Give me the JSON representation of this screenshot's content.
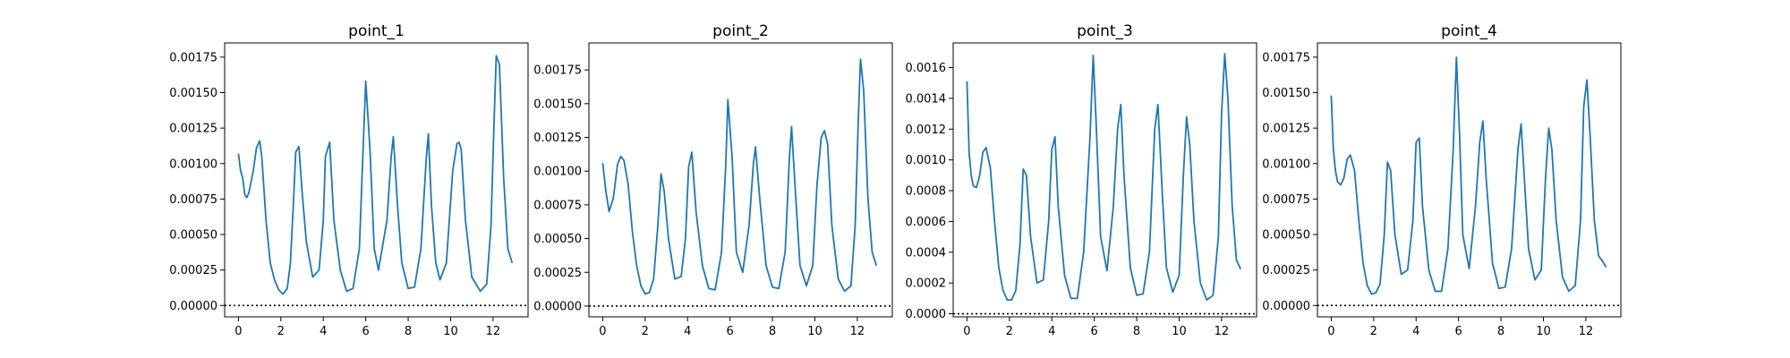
{
  "chart_data": [
    {
      "type": "line",
      "title": "point_1",
      "xlim": [
        -0.65,
        13.65
      ],
      "ylim": [
        -8e-05,
        0.00185
      ],
      "xticks": [
        0,
        2,
        4,
        6,
        8,
        10,
        12
      ],
      "xtick_labels": [
        "0",
        "2",
        "4",
        "6",
        "8",
        "10",
        "12"
      ],
      "yticks": [
        0,
        0.00025,
        0.0005,
        0.00075,
        0.001,
        0.00125,
        0.0015,
        0.00175
      ],
      "ytick_labels": [
        "0.00000",
        "0.00025",
        "0.00050",
        "0.00075",
        "0.00100",
        "0.00125",
        "0.00150",
        "0.00175"
      ],
      "reference_line_y": 0,
      "series": [
        {
          "x": [
            0,
            0.1,
            0.2,
            0.3,
            0.4,
            0.5,
            0.7,
            0.85,
            1.0,
            1.1,
            1.3,
            1.5,
            1.7,
            1.9,
            2.1,
            2.3,
            2.45,
            2.6,
            2.7,
            2.85,
            3.0,
            3.2,
            3.5,
            3.8,
            4.0,
            4.1,
            4.3,
            4.5,
            4.8,
            5.1,
            5.4,
            5.7,
            5.85,
            6.0,
            6.2,
            6.4,
            6.6,
            7.0,
            7.2,
            7.3,
            7.5,
            7.7,
            8.0,
            8.3,
            8.6,
            8.85,
            8.95,
            9.1,
            9.3,
            9.5,
            9.8,
            10.1,
            10.3,
            10.4,
            10.5,
            10.7,
            11.0,
            11.4,
            11.7,
            11.9,
            12.05,
            12.15,
            12.3,
            12.5,
            12.7,
            12.9
          ],
          "y": [
            0.00107,
            0.00095,
            0.0009,
            0.00078,
            0.00076,
            0.0008,
            0.00095,
            0.00111,
            0.00116,
            0.00105,
            0.0006,
            0.0003,
            0.00018,
            0.00011,
            8e-05,
            0.00012,
            0.0003,
            0.00075,
            0.00108,
            0.00112,
            0.0008,
            0.00045,
            0.0002,
            0.00025,
            0.0006,
            0.00105,
            0.00115,
            0.0006,
            0.00025,
            0.0001,
            0.00012,
            0.0004,
            0.001,
            0.00158,
            0.0011,
            0.0004,
            0.00025,
            0.0006,
            0.00105,
            0.00119,
            0.0007,
            0.0003,
            0.00012,
            0.00013,
            0.0004,
            0.00103,
            0.00121,
            0.0007,
            0.0003,
            0.00018,
            0.0003,
            0.00095,
            0.00114,
            0.00115,
            0.0011,
            0.0006,
            0.0002,
            0.0001,
            0.00015,
            0.00055,
            0.0013,
            0.00176,
            0.0017,
            0.0009,
            0.0004,
            0.0003
          ]
        }
      ]
    },
    {
      "type": "line",
      "title": "point_2",
      "xlim": [
        -0.65,
        13.65
      ],
      "ylim": [
        -8e-05,
        0.00195
      ],
      "xticks": [
        0,
        2,
        4,
        6,
        8,
        10,
        12
      ],
      "xtick_labels": [
        "0",
        "2",
        "4",
        "6",
        "8",
        "10",
        "12"
      ],
      "yticks": [
        0,
        0.00025,
        0.0005,
        0.00075,
        0.001,
        0.00125,
        0.0015,
        0.00175
      ],
      "ytick_labels": [
        "0.00000",
        "0.00025",
        "0.00050",
        "0.00075",
        "0.00100",
        "0.00125",
        "0.00150",
        "0.00175"
      ],
      "reference_line_y": 0,
      "series": [
        {
          "x": [
            0,
            0.15,
            0.3,
            0.5,
            0.7,
            0.85,
            1.0,
            1.2,
            1.4,
            1.6,
            1.8,
            2.0,
            2.2,
            2.4,
            2.6,
            2.75,
            2.9,
            3.1,
            3.4,
            3.7,
            3.9,
            4.05,
            4.2,
            4.4,
            4.7,
            5.0,
            5.3,
            5.6,
            5.8,
            5.9,
            6.1,
            6.3,
            6.6,
            6.9,
            7.1,
            7.2,
            7.4,
            7.7,
            8.0,
            8.3,
            8.6,
            8.8,
            8.9,
            9.1,
            9.3,
            9.6,
            9.9,
            10.1,
            10.3,
            10.45,
            10.6,
            10.8,
            11.1,
            11.4,
            11.7,
            11.9,
            12.05,
            12.15,
            12.3,
            12.5,
            12.7,
            12.9
          ],
          "y": [
            0.00106,
            0.00085,
            0.0007,
            0.0008,
            0.00105,
            0.00111,
            0.00108,
            0.0009,
            0.00055,
            0.0003,
            0.00015,
            9e-05,
            0.0001,
            0.0002,
            0.0006,
            0.00098,
            0.00085,
            0.0005,
            0.0002,
            0.00022,
            0.0005,
            0.00103,
            0.00114,
            0.0007,
            0.0003,
            0.00013,
            0.00012,
            0.0004,
            0.00105,
            0.00153,
            0.0011,
            0.0004,
            0.00025,
            0.0006,
            0.00105,
            0.00118,
            0.0008,
            0.0003,
            0.00014,
            0.00013,
            0.0004,
            0.0011,
            0.00133,
            0.0008,
            0.0003,
            0.00015,
            0.0003,
            0.0009,
            0.00125,
            0.0013,
            0.0012,
            0.0006,
            0.0002,
            0.00011,
            0.00015,
            0.0006,
            0.0014,
            0.00183,
            0.0016,
            0.0008,
            0.0004,
            0.0003
          ]
        }
      ]
    },
    {
      "type": "line",
      "title": "point_3",
      "xlim": [
        -0.65,
        13.65
      ],
      "ylim": [
        -2e-05,
        0.00176
      ],
      "xticks": [
        0,
        2,
        4,
        6,
        8,
        10,
        12
      ],
      "xtick_labels": [
        "0",
        "2",
        "4",
        "6",
        "8",
        "10",
        "12"
      ],
      "yticks": [
        0,
        0.0002,
        0.0004,
        0.0006,
        0.0008,
        0.001,
        0.0012,
        0.0014,
        0.0016
      ],
      "ytick_labels": [
        "0.0000",
        "0.0002",
        "0.0004",
        "0.0006",
        "0.0008",
        "0.0010",
        "0.0012",
        "0.0014",
        "0.0016"
      ],
      "reference_line_y": 0,
      "series": [
        {
          "x": [
            0,
            0.1,
            0.2,
            0.3,
            0.45,
            0.6,
            0.75,
            0.9,
            1.1,
            1.3,
            1.5,
            1.7,
            1.9,
            2.1,
            2.3,
            2.5,
            2.65,
            2.8,
            3.0,
            3.3,
            3.6,
            3.85,
            4.0,
            4.15,
            4.3,
            4.6,
            4.9,
            5.2,
            5.5,
            5.8,
            5.95,
            6.1,
            6.3,
            6.6,
            6.9,
            7.1,
            7.25,
            7.4,
            7.7,
            8.0,
            8.3,
            8.6,
            8.85,
            9.0,
            9.2,
            9.4,
            9.7,
            10.0,
            10.2,
            10.35,
            10.5,
            10.7,
            11.0,
            11.3,
            11.6,
            11.85,
            12.0,
            12.15,
            12.3,
            12.5,
            12.7,
            12.9
          ],
          "y": [
            0.00151,
            0.00105,
            0.0009,
            0.00083,
            0.00082,
            0.0009,
            0.00105,
            0.00108,
            0.00095,
            0.0006,
            0.0003,
            0.00015,
            9e-05,
            9e-05,
            0.00015,
            0.00045,
            0.00094,
            0.0009,
            0.0005,
            0.0002,
            0.00022,
            0.0006,
            0.00107,
            0.00115,
            0.0007,
            0.00025,
            0.0001,
            0.0001,
            0.0004,
            0.00115,
            0.00168,
            0.0012,
            0.0005,
            0.00028,
            0.0007,
            0.0012,
            0.00136,
            0.0009,
            0.0003,
            0.00012,
            0.00013,
            0.0004,
            0.0012,
            0.00136,
            0.0008,
            0.0003,
            0.00014,
            0.00025,
            0.0009,
            0.00128,
            0.0011,
            0.0006,
            0.0002,
            9e-05,
            0.00012,
            0.0005,
            0.0013,
            0.00169,
            0.0014,
            0.0007,
            0.00035,
            0.00029
          ]
        }
      ]
    },
    {
      "type": "line",
      "title": "point_4",
      "xlim": [
        -0.65,
        13.65
      ],
      "ylim": [
        -8e-05,
        0.00185
      ],
      "xticks": [
        0,
        2,
        4,
        6,
        8,
        10,
        12
      ],
      "xtick_labels": [
        "0",
        "2",
        "4",
        "6",
        "8",
        "10",
        "12"
      ],
      "yticks": [
        0,
        0.00025,
        0.0005,
        0.00075,
        0.001,
        0.00125,
        0.0015,
        0.00175
      ],
      "ytick_labels": [
        "0.00000",
        "0.00025",
        "0.00050",
        "0.00075",
        "0.00100",
        "0.00125",
        "0.00150",
        "0.00175"
      ],
      "reference_line_y": 0,
      "series": [
        {
          "x": [
            0,
            0.1,
            0.2,
            0.3,
            0.45,
            0.6,
            0.75,
            0.9,
            1.1,
            1.3,
            1.5,
            1.7,
            1.9,
            2.1,
            2.3,
            2.5,
            2.65,
            2.8,
            3.0,
            3.3,
            3.6,
            3.85,
            4.0,
            4.15,
            4.3,
            4.6,
            4.9,
            5.2,
            5.5,
            5.75,
            5.9,
            6.05,
            6.2,
            6.5,
            6.8,
            7.0,
            7.15,
            7.3,
            7.6,
            7.9,
            8.2,
            8.5,
            8.8,
            8.95,
            9.1,
            9.3,
            9.6,
            9.9,
            10.1,
            10.25,
            10.4,
            10.6,
            10.9,
            11.2,
            11.5,
            11.75,
            11.9,
            12.05,
            12.2,
            12.4,
            12.6,
            12.8,
            12.95
          ],
          "y": [
            0.00148,
            0.0011,
            0.00095,
            0.00087,
            0.00085,
            0.0009,
            0.00103,
            0.00106,
            0.00095,
            0.0006,
            0.0003,
            0.00014,
            8e-05,
            9e-05,
            0.00015,
            0.0005,
            0.00101,
            0.00095,
            0.0005,
            0.00022,
            0.00025,
            0.0006,
            0.00115,
            0.00118,
            0.0007,
            0.00025,
            0.0001,
            0.0001,
            0.0004,
            0.0011,
            0.00175,
            0.0012,
            0.0005,
            0.00026,
            0.0007,
            0.00115,
            0.0013,
            0.0009,
            0.0003,
            0.00012,
            0.00013,
            0.0004,
            0.0011,
            0.00128,
            0.0009,
            0.0004,
            0.00018,
            0.00025,
            0.0009,
            0.00125,
            0.0011,
            0.0006,
            0.0002,
            0.0001,
            0.00014,
            0.0006,
            0.0014,
            0.00159,
            0.0012,
            0.0006,
            0.00035,
            0.00031,
            0.00027
          ]
        }
      ]
    }
  ]
}
